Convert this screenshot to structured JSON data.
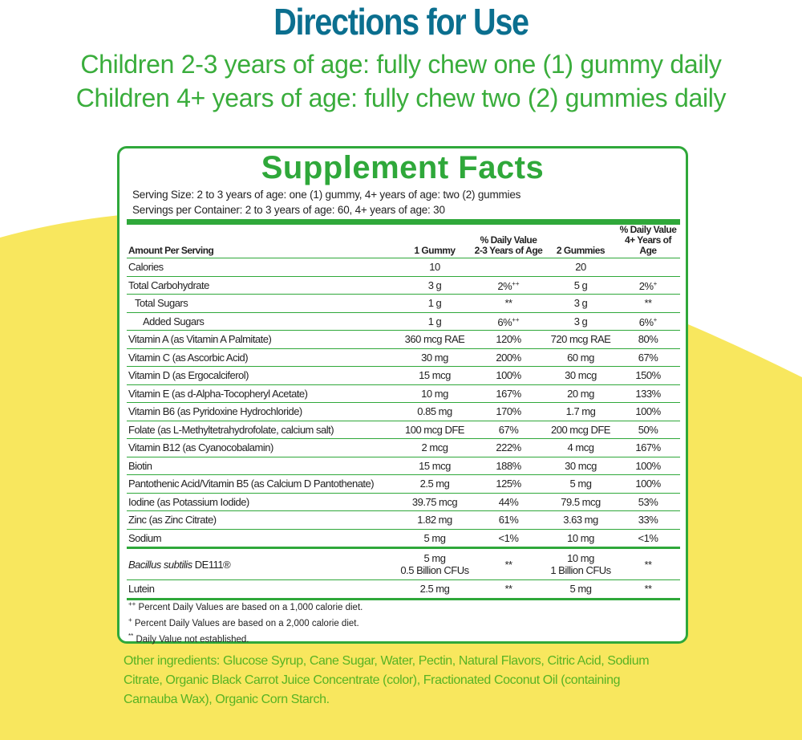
{
  "header": {
    "title": "Directions for Use",
    "lines": [
      "Children 2-3 years of age: fully chew one (1) gummy daily",
      "Children 4+ years of age: fully chew two (2) gummies daily"
    ]
  },
  "facts": {
    "title": "Supplement Facts",
    "serving_size": "Serving Size: 2 to 3 years of age: one (1) gummy, 4+ years of age: two (2) gummies",
    "servings": "Servings per Container: 2 to 3 years of age: 60, 4+ years of age: 30",
    "columns": [
      [
        "Amount Per Serving"
      ],
      [
        "1 Gummy"
      ],
      [
        "% Daily Value",
        "2-3 Years of Age"
      ],
      [
        "2 Gummies"
      ],
      [
        "% Daily Value",
        "4+ Years of Age"
      ]
    ],
    "rows": [
      {
        "name": "Calories",
        "cells": [
          "10",
          null,
          "20",
          null
        ]
      },
      {
        "name": "Total Carbohydrate",
        "cells": [
          "3 g",
          {
            "value": "2%",
            "note": "++"
          },
          "5 g",
          {
            "value": "2%",
            "note": "+"
          }
        ]
      },
      {
        "name": "Total Sugars",
        "cells": [
          "1 g",
          "**",
          "3 g",
          "**"
        ]
      },
      {
        "name": "Added Sugars",
        "cells": [
          "1 g",
          {
            "value": "6%",
            "note": "++"
          },
          "3 g",
          {
            "value": "6%",
            "note": "+"
          }
        ]
      },
      {
        "name": "Vitamin A (as Vitamin A Palmitate)",
        "cells": [
          "360 mcg RAE",
          "120%",
          "720 mcg RAE",
          "80%"
        ]
      },
      {
        "name": "Vitamin C (as Ascorbic Acid)",
        "cells": [
          "30 mg",
          "200%",
          "60 mg",
          "67%"
        ]
      },
      {
        "name": "Vitamin D (as Ergocalciferol)",
        "cells": [
          "15 mcg",
          "100%",
          "30 mcg",
          "150%"
        ]
      },
      {
        "name": "Vitamin E (as d-Alpha-Tocopheryl Acetate)",
        "cells": [
          "10 mg",
          "167%",
          "20 mg",
          "133%"
        ]
      },
      {
        "name": "Vitamin B6 (as Pyridoxine Hydrochloride)",
        "cells": [
          "0.85 mg",
          "170%",
          "1.7 mg",
          "100%"
        ]
      },
      {
        "name": "Folate (as L-Methyltetrahydrofolate, calcium salt)",
        "cells": [
          "100 mcg DFE",
          "67%",
          "200 mcg DFE",
          "50%"
        ]
      },
      {
        "name": "Vitamin B12 (as Cyanocobalamin)",
        "cells": [
          "2 mcg",
          "222%",
          "4 mcg",
          "167%"
        ]
      },
      {
        "name": "Biotin",
        "cells": [
          "15 mcg",
          "188%",
          "30 mcg",
          "100%"
        ]
      },
      {
        "name": "Pantothenic Acid/Vitamin B5 (as Calcium D Pantothenate)",
        "cells": [
          "2.5 mg",
          "125%",
          "5 mg",
          "100%"
        ]
      },
      {
        "name": "Iodine (as Potassium Iodide)",
        "cells": [
          "39.75 mcg",
          "44%",
          "79.5 mcg",
          "53%"
        ]
      },
      {
        "name": "Zinc (as Zinc Citrate)",
        "cells": [
          "1.82 mg",
          "61%",
          "3.63 mg",
          "33%"
        ]
      },
      {
        "name": "Sodium",
        "cells": [
          "5 mg",
          "<1%",
          "10 mg",
          "<1%"
        ]
      },
      {
        "name": {
          "italic": "Bacillus subtilis",
          "text": "DE111®"
        },
        "cells": [
          [
            "5 mg",
            "0.5 Billion CFUs"
          ],
          "**",
          [
            "10 mg",
            "1 Billion CFUs"
          ],
          "**"
        ]
      },
      {
        "name": "Lutein",
        "cells": [
          "2.5 mg",
          "**",
          "5 mg",
          "**"
        ]
      }
    ],
    "footnotes": [
      {
        "mark": "++",
        "text": "Percent Daily Values are based on a 1,000 calorie diet."
      },
      {
        "mark": "+",
        "text": "Percent Daily Values are based on a 2,000 calorie diet."
      },
      {
        "mark": "**",
        "text": "Daily Value not established."
      }
    ]
  },
  "ingredients": "Other ingredients: Glucose Syrup, Cane Sugar, Water, Pectin, Natural Flavors, Citric Acid, Sodium Citrate, Organic Black Carrot Juice Concentrate (color), Fractionated Coconut Oil (containing Carnauba Wax), Organic Corn Starch."
}
